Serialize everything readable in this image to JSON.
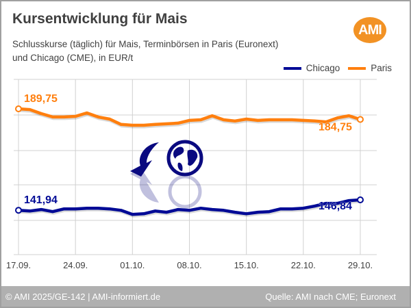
{
  "title": "Kursentwicklung für Mais",
  "subtitle_line1": "Schlusskurse (täglich) für Mais, Terminbörsen in Paris (Euronext)",
  "subtitle_line2": "und Chicago (CME), in EUR/t",
  "logo_text": "AMI",
  "footer": {
    "left": "© AMI 2025/GE-142 | AMI-informiert.de",
    "right": "Quelle: AMI nach CME; Euronext"
  },
  "colors": {
    "chicago": "#000a96",
    "paris": "#ff7f0e",
    "grid": "#d0d0d0",
    "logo": "#f29224"
  },
  "chart_data": {
    "type": "line",
    "title": "Kursentwicklung für Mais",
    "xlabel": "",
    "ylabel": "EUR/t",
    "x_ticks": [
      "17.09.",
      "24.09.",
      "01.10.",
      "08.10.",
      "15.10.",
      "22.10.",
      "29.10."
    ],
    "grid": true,
    "legend": "top-right",
    "series": [
      {
        "name": "Chicago",
        "start_label": "141,94",
        "end_label": "146,84",
        "values": [
          141.94,
          141.6,
          142.3,
          141.3,
          142.6,
          142.6,
          142.9,
          142.9,
          142.6,
          141.9,
          140.0,
          140.3,
          141.6,
          141.0,
          142.3,
          141.9,
          142.9,
          142.3,
          141.9,
          141.0,
          140.3,
          141.0,
          141.3,
          142.6,
          142.6,
          142.9,
          143.9,
          145.2,
          145.2,
          146.5,
          146.84
        ]
      },
      {
        "name": "Paris",
        "start_label": "189,75",
        "end_label": "184,75",
        "values": [
          189.75,
          189.4,
          187.5,
          185.9,
          185.9,
          186.2,
          187.8,
          185.9,
          184.9,
          182.4,
          182.0,
          182.0,
          182.4,
          182.7,
          183.0,
          184.3,
          184.6,
          186.5,
          184.6,
          184.0,
          184.9,
          184.3,
          184.6,
          184.6,
          184.6,
          184.3,
          184.0,
          183.6,
          185.5,
          186.5,
          184.75
        ]
      }
    ]
  }
}
